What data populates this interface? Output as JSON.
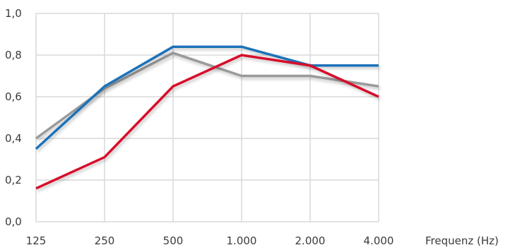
{
  "chart_data": {
    "type": "line",
    "title": "",
    "xlabel": "Frequenz (Hz)",
    "ylabel": "",
    "categories": [
      "125",
      "250",
      "500",
      "1.000",
      "2.000",
      "4.000"
    ],
    "y_ticks": [
      "0,0",
      "0,2",
      "0,4",
      "0,6",
      "0,8",
      "1,0"
    ],
    "ylim": [
      0,
      1
    ],
    "grid": true,
    "series": [
      {
        "color": "#9a9a9a",
        "values": [
          0.4,
          0.64,
          0.81,
          0.7,
          0.7,
          0.65
        ]
      },
      {
        "color": "#1a72b8",
        "values": [
          0.35,
          0.65,
          0.84,
          0.84,
          0.75,
          0.75
        ]
      },
      {
        "color": "#d6102c",
        "values": [
          0.16,
          0.31,
          0.65,
          0.8,
          0.75,
          0.6
        ]
      }
    ]
  }
}
